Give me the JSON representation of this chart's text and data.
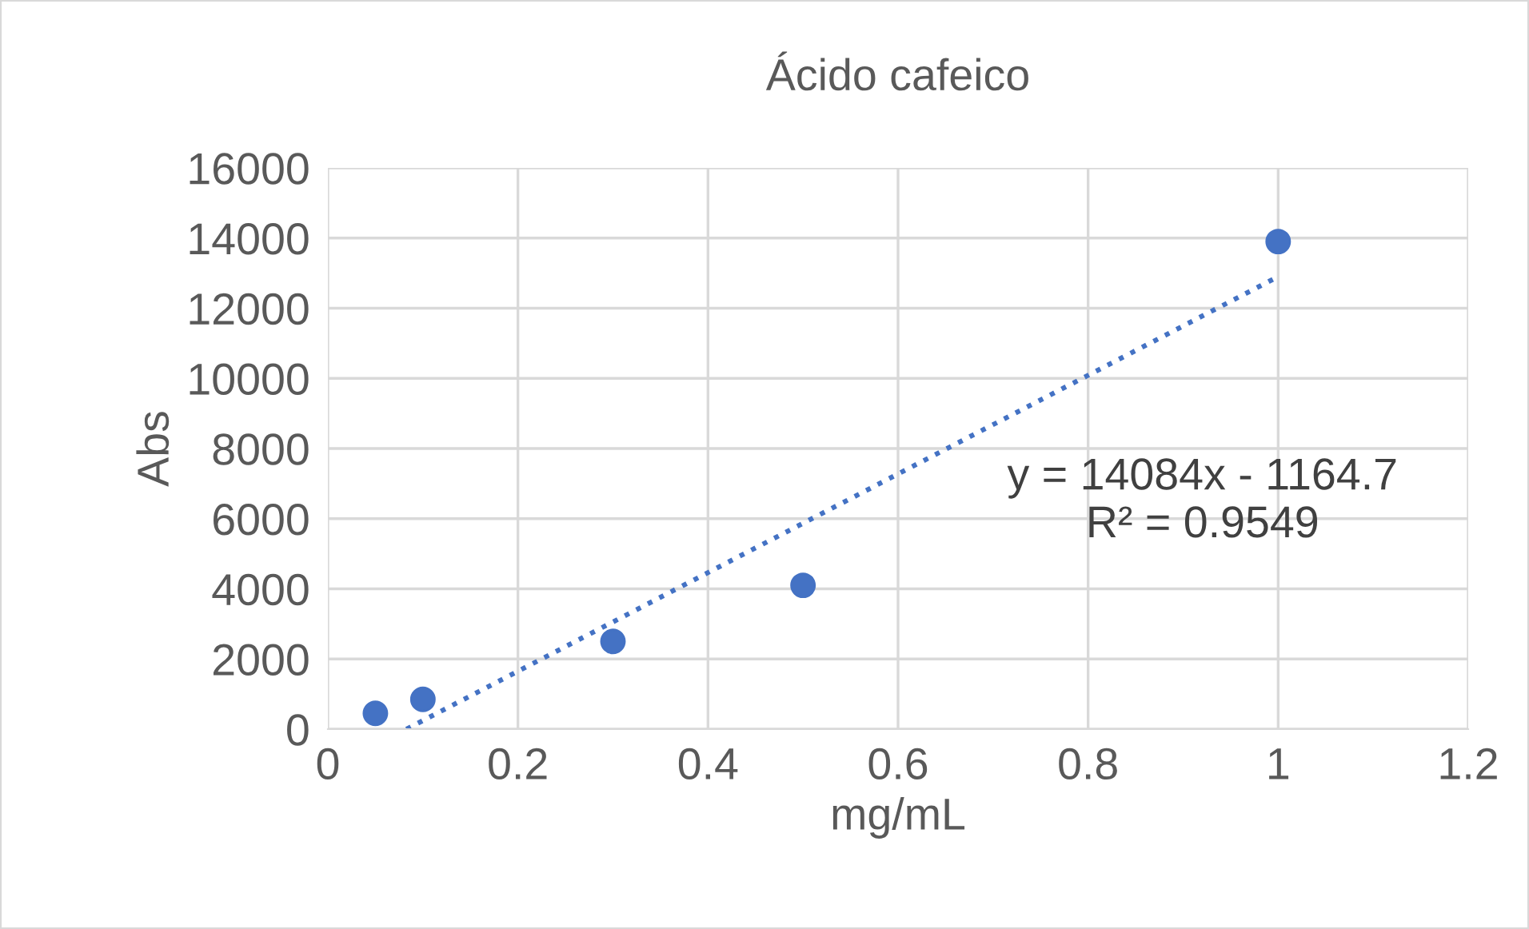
{
  "chart_data": {
    "type": "scatter",
    "title": "Ácido cafeico",
    "xlabel": "mg/mL",
    "ylabel": "Abs",
    "series": [
      {
        "color": "#4472c4",
        "marker": "circle",
        "x": [
          0.05,
          0.1,
          0.3,
          0.5,
          1.0
        ],
        "values": [
          450,
          850,
          2500,
          4100,
          13900
        ]
      },
      {
        "type": "line",
        "color": "#4472c4",
        "marker": "none",
        "line_style": "dotted",
        "x": [
          0.0827,
          1.0
        ],
        "values": [
          0,
          12900
        ]
      }
    ],
    "annotations": [
      "y = 14084x - 1164.7\nR² = 0.9549"
    ],
    "xlim": [
      0,
      1.2
    ],
    "xticks": [
      0,
      0.2,
      0.4,
      0.6,
      0.8,
      1,
      1.2
    ],
    "ylim": [
      0,
      16000
    ],
    "yticks": [
      0,
      2000,
      4000,
      6000,
      8000,
      10000,
      12000,
      14000,
      16000
    ],
    "grid": true,
    "legend": false
  }
}
